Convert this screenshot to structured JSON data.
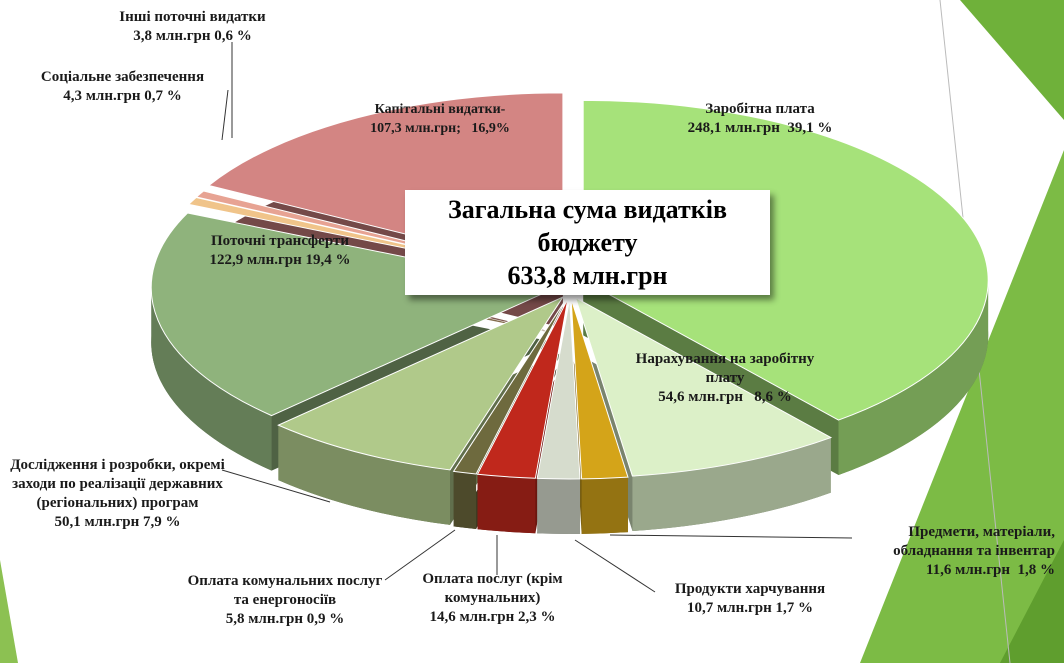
{
  "chart_data": {
    "type": "pie",
    "title": "Загальна сума видатків бюджету",
    "subtitle": "633,8 млн.грн",
    "categories": [
      "Заробітна плата",
      "Нарахування на заробітну плату",
      "Предмети, матеріали, обладнання та інвентар",
      "Продукти харчування",
      "Оплата послуг (крім комунальних)",
      "Оплата комунальних послуг та енергоносіїв",
      "Дослідження і розробки, окремі заходи по реалізації державних (регіональних) програм",
      "Поточні трансферти",
      "Соціальне забезпечення",
      "Інші поточні видатки",
      "Капітальні видатки-"
    ],
    "values": [
      248.1,
      54.6,
      11.6,
      10.7,
      14.6,
      5.8,
      50.1,
      122.9,
      4.3,
      3.8,
      107.3
    ],
    "value_labels": [
      "248,1 млн.грн  39,1 %",
      "54,6 млн.грн   8,6 %",
      "11,6 млн.грн  1,8 %",
      "10,7 млн.грн 1,7 %",
      "14,6 млн.грн 2,3 %",
      "5,8 млн.грн 0,9 %",
      "50,1 млн.грн 7,9 %",
      "122,9 млн.грн 19,4 %",
      "4,3 млн.грн 0,7 %",
      "3,8 млн.грн 0,6 %",
      "107,3 млн.грн;   16,9%"
    ],
    "colors": [
      "#a6e27a",
      "#dcf0c8",
      "#d4a419",
      "#d6dccd",
      "#c0281c",
      "#6e6a3e",
      "#b0c98a",
      "#8fb37c",
      "#f0c48a",
      "#e7a393",
      "#d38583"
    ]
  }
}
